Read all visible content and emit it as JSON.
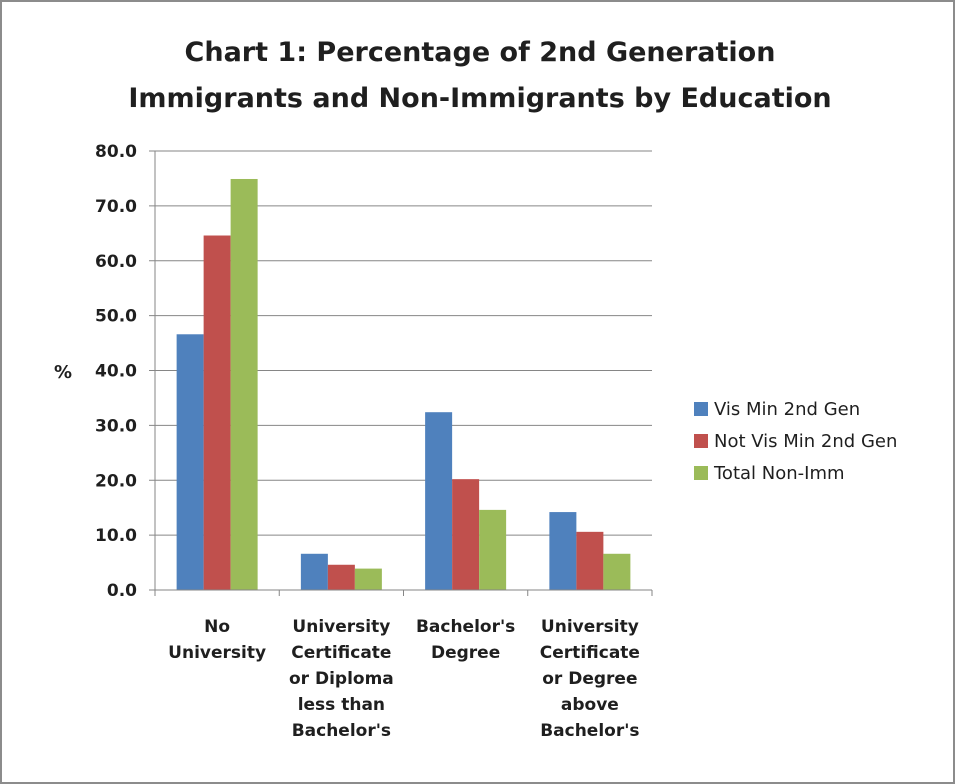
{
  "chart_data": {
    "type": "bar",
    "title_lines": [
      "Chart 1: Percentage of 2nd Generation",
      "Immigrants and Non-Immigrants by Education"
    ],
    "ylabel": "%",
    "xlabel": "",
    "ylim": [
      0,
      80
    ],
    "y_ticks": [
      "0.0",
      "10.0",
      "20.0",
      "30.0",
      "40.0",
      "50.0",
      "60.0",
      "70.0",
      "80.0"
    ],
    "grid": true,
    "legend_position": "right",
    "categories": [
      [
        "No",
        "University"
      ],
      [
        "University",
        "Certificate",
        "or Diploma",
        "less than",
        "Bachelor's"
      ],
      [
        "Bachelor's",
        "Degree"
      ],
      [
        "University",
        "Certificate",
        "or Degree",
        "above",
        "Bachelor's"
      ]
    ],
    "series": [
      {
        "name": "Vis Min 2nd Gen",
        "color": "#4f81bd",
        "values": [
          46.6,
          6.6,
          32.4,
          14.2
        ]
      },
      {
        "name": "Not Vis Min 2nd Gen",
        "color": "#c0504d",
        "values": [
          64.6,
          4.6,
          20.2,
          10.6
        ]
      },
      {
        "name": "Total Non-Imm",
        "color": "#9bbb59",
        "values": [
          74.9,
          3.9,
          14.6,
          6.6
        ]
      }
    ]
  }
}
